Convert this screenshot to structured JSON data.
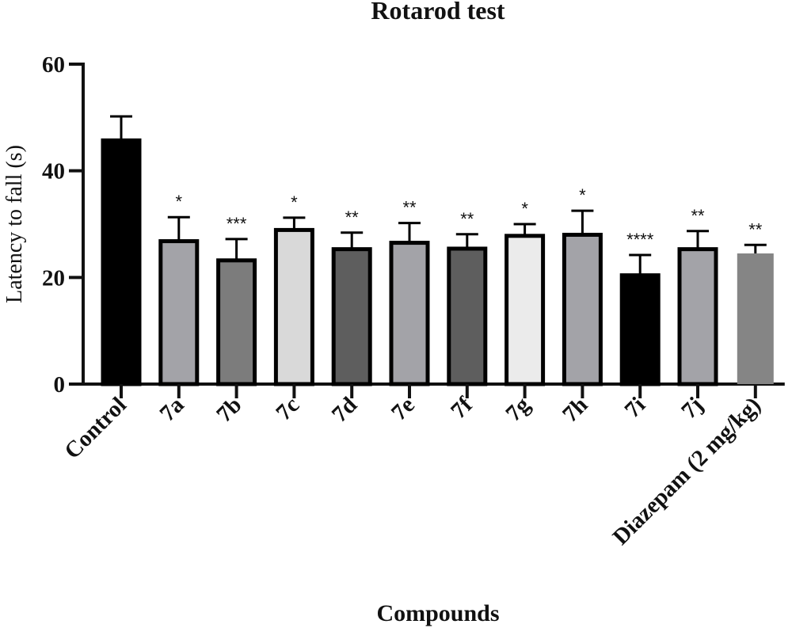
{
  "chart_data": {
    "type": "bar",
    "title": "Rotarod test",
    "xlabel": "Compounds",
    "ylabel": "Latency to fall (s)",
    "ylim": [
      0,
      60
    ],
    "yticks": [
      "0",
      "20",
      "40",
      "60"
    ],
    "categories": [
      "Control",
      "7a",
      "7b",
      "7c",
      "7d",
      "7e",
      "7f",
      "7g",
      "7h",
      "7i",
      "7j",
      "Diazepam (2 mg/kg)"
    ],
    "values": [
      45.7,
      26.8,
      23.2,
      28.9,
      25.3,
      26.5,
      25.4,
      27.8,
      28.0,
      20.4,
      25.3,
      24.5
    ],
    "errors": [
      4.5,
      4.5,
      4.0,
      2.3,
      3.1,
      3.7,
      2.7,
      2.2,
      4.5,
      3.8,
      3.4,
      1.6
    ],
    "significance": [
      "",
      "*",
      "***",
      "*",
      "**",
      "**",
      "**",
      "*",
      "*",
      "****",
      "**",
      "**"
    ],
    "bar_colors": [
      "#000000",
      "#a3a3a8",
      "#7c7c7c",
      "#d9d9d9",
      "#5e5e5e",
      "#a3a3a8",
      "#5e5e5e",
      "#ebebeb",
      "#a3a3a8",
      "#000000",
      "#a3a3a8",
      "#858585"
    ],
    "grid": false,
    "legend": "none"
  }
}
